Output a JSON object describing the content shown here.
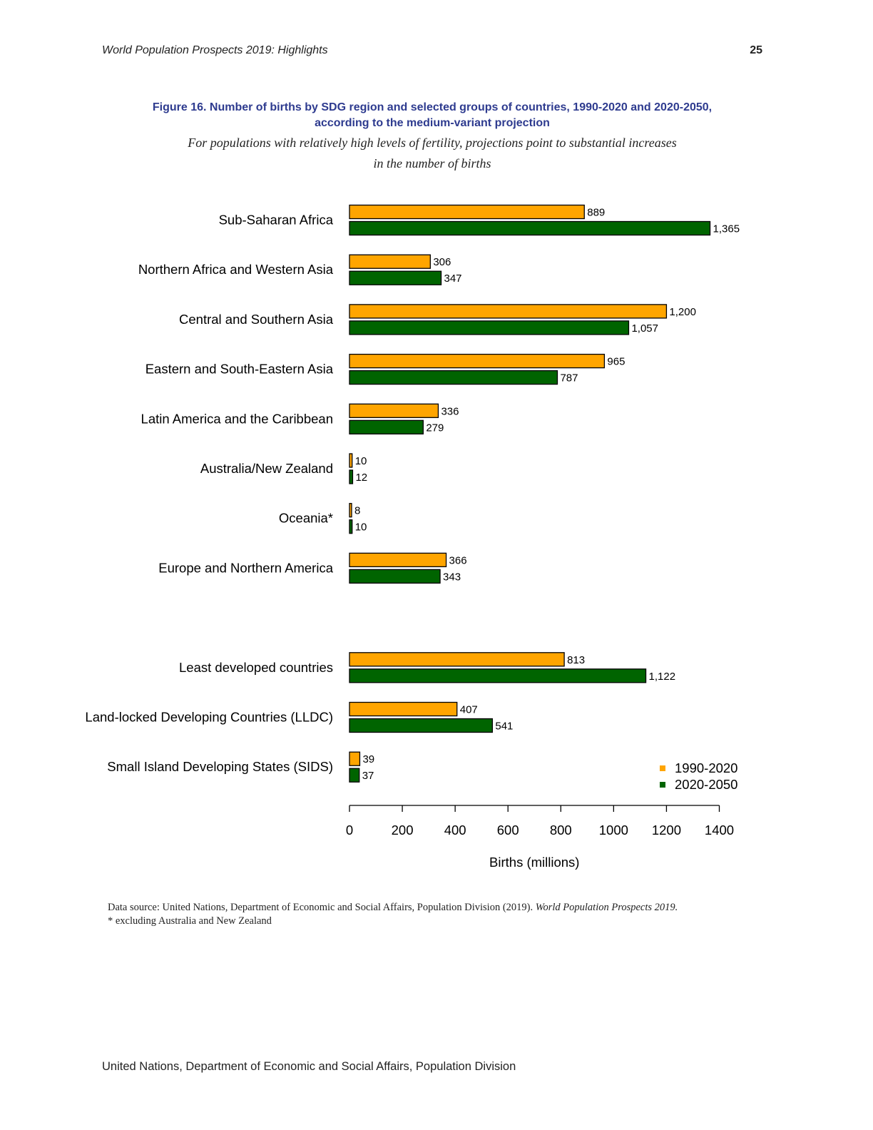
{
  "header": {
    "running_title": "World Population Prospects 2019: Highlights",
    "page_number": "25"
  },
  "figure": {
    "title_line1": "Figure 16. Number of births by SDG region and selected groups of countries, 1990-2020 and 2020-2050,",
    "title_line2": "according to the medium-variant projection",
    "subtitle_line1": "For populations with relatively high levels of fertility, projections point to substantial increases",
    "subtitle_line2": "in the number of births"
  },
  "chart_data": {
    "type": "bar",
    "orientation": "horizontal",
    "categories": [
      "Sub-Saharan Africa",
      "Northern Africa and Western Asia",
      "Central and Southern Asia",
      "Eastern and South-Eastern Asia",
      "Latin America and the Caribbean",
      "Australia/New Zealand",
      "Oceania*",
      "Europe and Northern America",
      "",
      "Least developed countries",
      "Land-locked Developing Countries (LLDC)",
      "Small Island Developing States (SIDS)"
    ],
    "series": [
      {
        "name": "1990-2020",
        "color": "#FFA500",
        "values": [
          889,
          306,
          1200,
          965,
          336,
          10,
          8,
          366,
          null,
          813,
          407,
          39
        ],
        "labels": [
          "889",
          "306",
          "1,200",
          "965",
          "336",
          "10",
          "8",
          "366",
          "",
          "813",
          "407",
          "39"
        ]
      },
      {
        "name": "2020-2050",
        "color": "#006400",
        "values": [
          1365,
          347,
          1057,
          787,
          279,
          12,
          10,
          343,
          null,
          1122,
          541,
          37
        ],
        "labels": [
          "1,365",
          "347",
          "1,057",
          "787",
          "279",
          "12",
          "10",
          "343",
          "",
          "1,122",
          "541",
          "37"
        ]
      }
    ],
    "xlabel": "Births (millions)",
    "ylabel": "",
    "xlim": [
      0,
      1400
    ],
    "xticks": [
      0,
      200,
      400,
      600,
      800,
      1000,
      1200,
      1400
    ],
    "grid": false,
    "legend_position": "bottom-right"
  },
  "notes": {
    "source_prefix": "Data source: United Nations, Department of Economic and Social Affairs, Population Division (2019). ",
    "source_title": "World Population Prospects 2019.",
    "footnote": "* excluding Australia and New Zealand"
  },
  "footer": {
    "text": "United Nations, Department of Economic and Social Affairs, Population Division"
  }
}
